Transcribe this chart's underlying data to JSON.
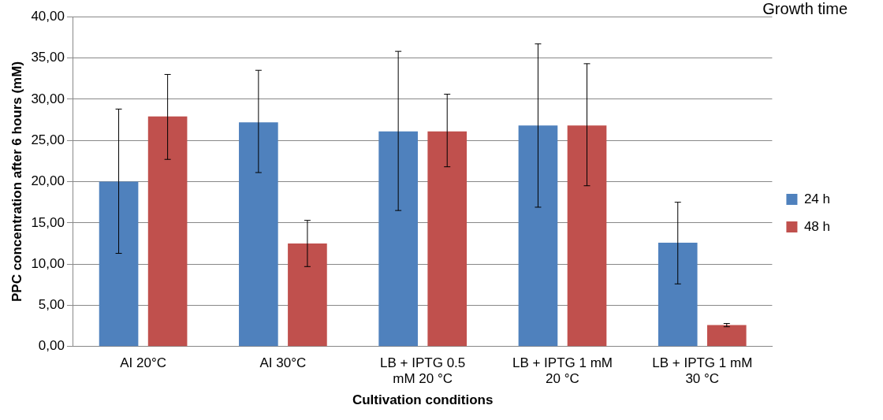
{
  "chart_data": {
    "type": "bar",
    "xlabel": "Cultivation conditions",
    "ylabel": "PPC concentration after 6 hours (mM)",
    "legend_title": "Growth time",
    "legend": "right",
    "grid": "y",
    "categories": [
      "AI 20°C",
      "AI 30°C",
      "LB + IPTG 0.5 mM 20 °C",
      "LB + IPTG 1 mM 20 °C",
      "LB + IPTG 1 mM 30 °C"
    ],
    "series": [
      {
        "name": "24 h",
        "color": "#4f81bd",
        "values": [
          20.0,
          27.2,
          26.1,
          26.8,
          12.6
        ],
        "errors": [
          [
            11.3,
            28.8
          ],
          [
            21.1,
            33.5
          ],
          [
            16.5,
            35.8
          ],
          [
            16.9,
            36.7
          ],
          [
            7.6,
            17.5
          ]
        ]
      },
      {
        "name": "48 h",
        "color": "#c0504d",
        "values": [
          27.9,
          12.5,
          26.1,
          26.8,
          2.6
        ],
        "errors": [
          [
            22.7,
            33.0
          ],
          [
            9.7,
            15.3
          ],
          [
            21.8,
            30.6
          ],
          [
            19.5,
            34.3
          ],
          [
            2.4,
            2.8
          ]
        ]
      }
    ],
    "ylim": [
      0,
      40
    ],
    "yticks": [
      {
        "value": 0,
        "label": "0,00"
      },
      {
        "value": 5,
        "label": "5,00"
      },
      {
        "value": 10,
        "label": "10,00"
      },
      {
        "value": 15,
        "label": "15,00"
      },
      {
        "value": 20,
        "label": "20,00"
      },
      {
        "value": 25,
        "label": "25,00"
      },
      {
        "value": 30,
        "label": "30,00"
      },
      {
        "value": 35,
        "label": "35,00"
      },
      {
        "value": 40,
        "label": "40,00"
      }
    ]
  }
}
